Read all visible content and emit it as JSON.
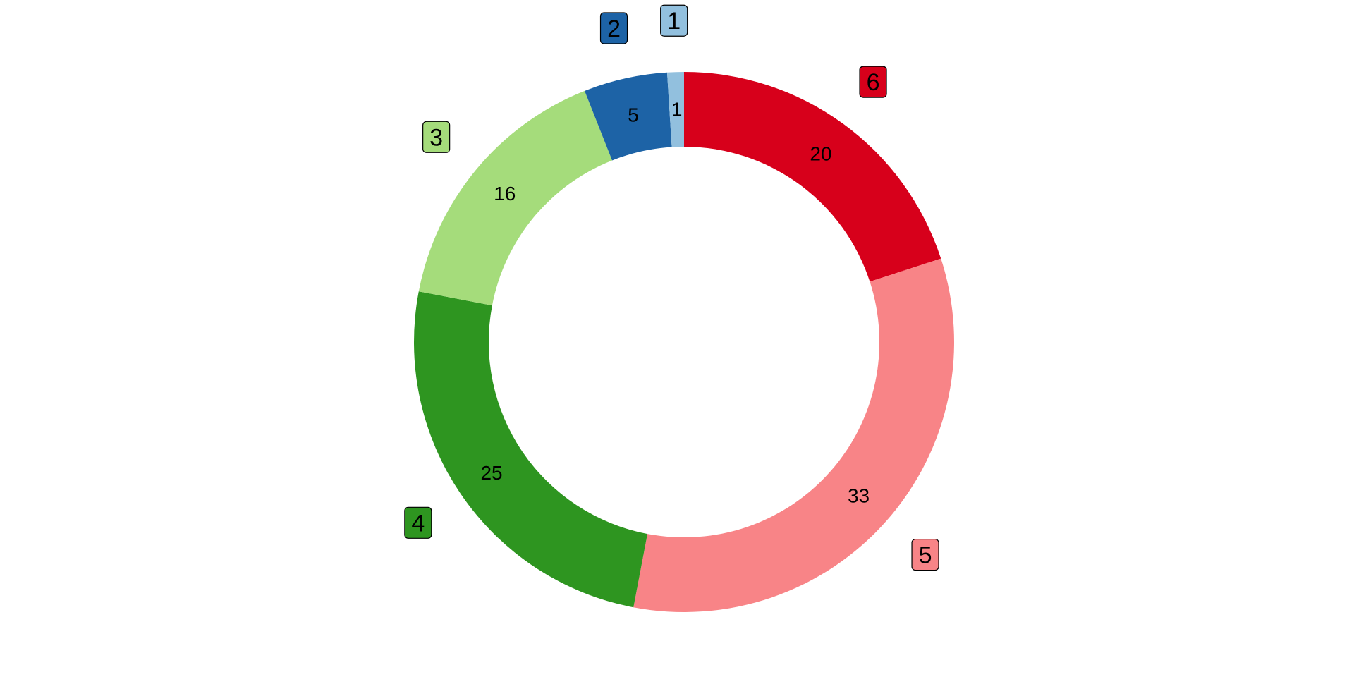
{
  "chart_data": {
    "type": "pie",
    "variant": "donut",
    "start": "top",
    "direction": "clockwise",
    "legend": "none",
    "slices": [
      {
        "label": "6",
        "value": 20,
        "color": "#d7001b"
      },
      {
        "label": "5",
        "value": 33,
        "color": "#f88487"
      },
      {
        "label": "4",
        "value": 25,
        "color": "#2e9520"
      },
      {
        "label": "3",
        "value": 16,
        "color": "#a5dc7b"
      },
      {
        "label": "2",
        "value": 5,
        "color": "#1d63a6"
      },
      {
        "label": "1",
        "value": 1,
        "color": "#92c0de"
      }
    ]
  }
}
